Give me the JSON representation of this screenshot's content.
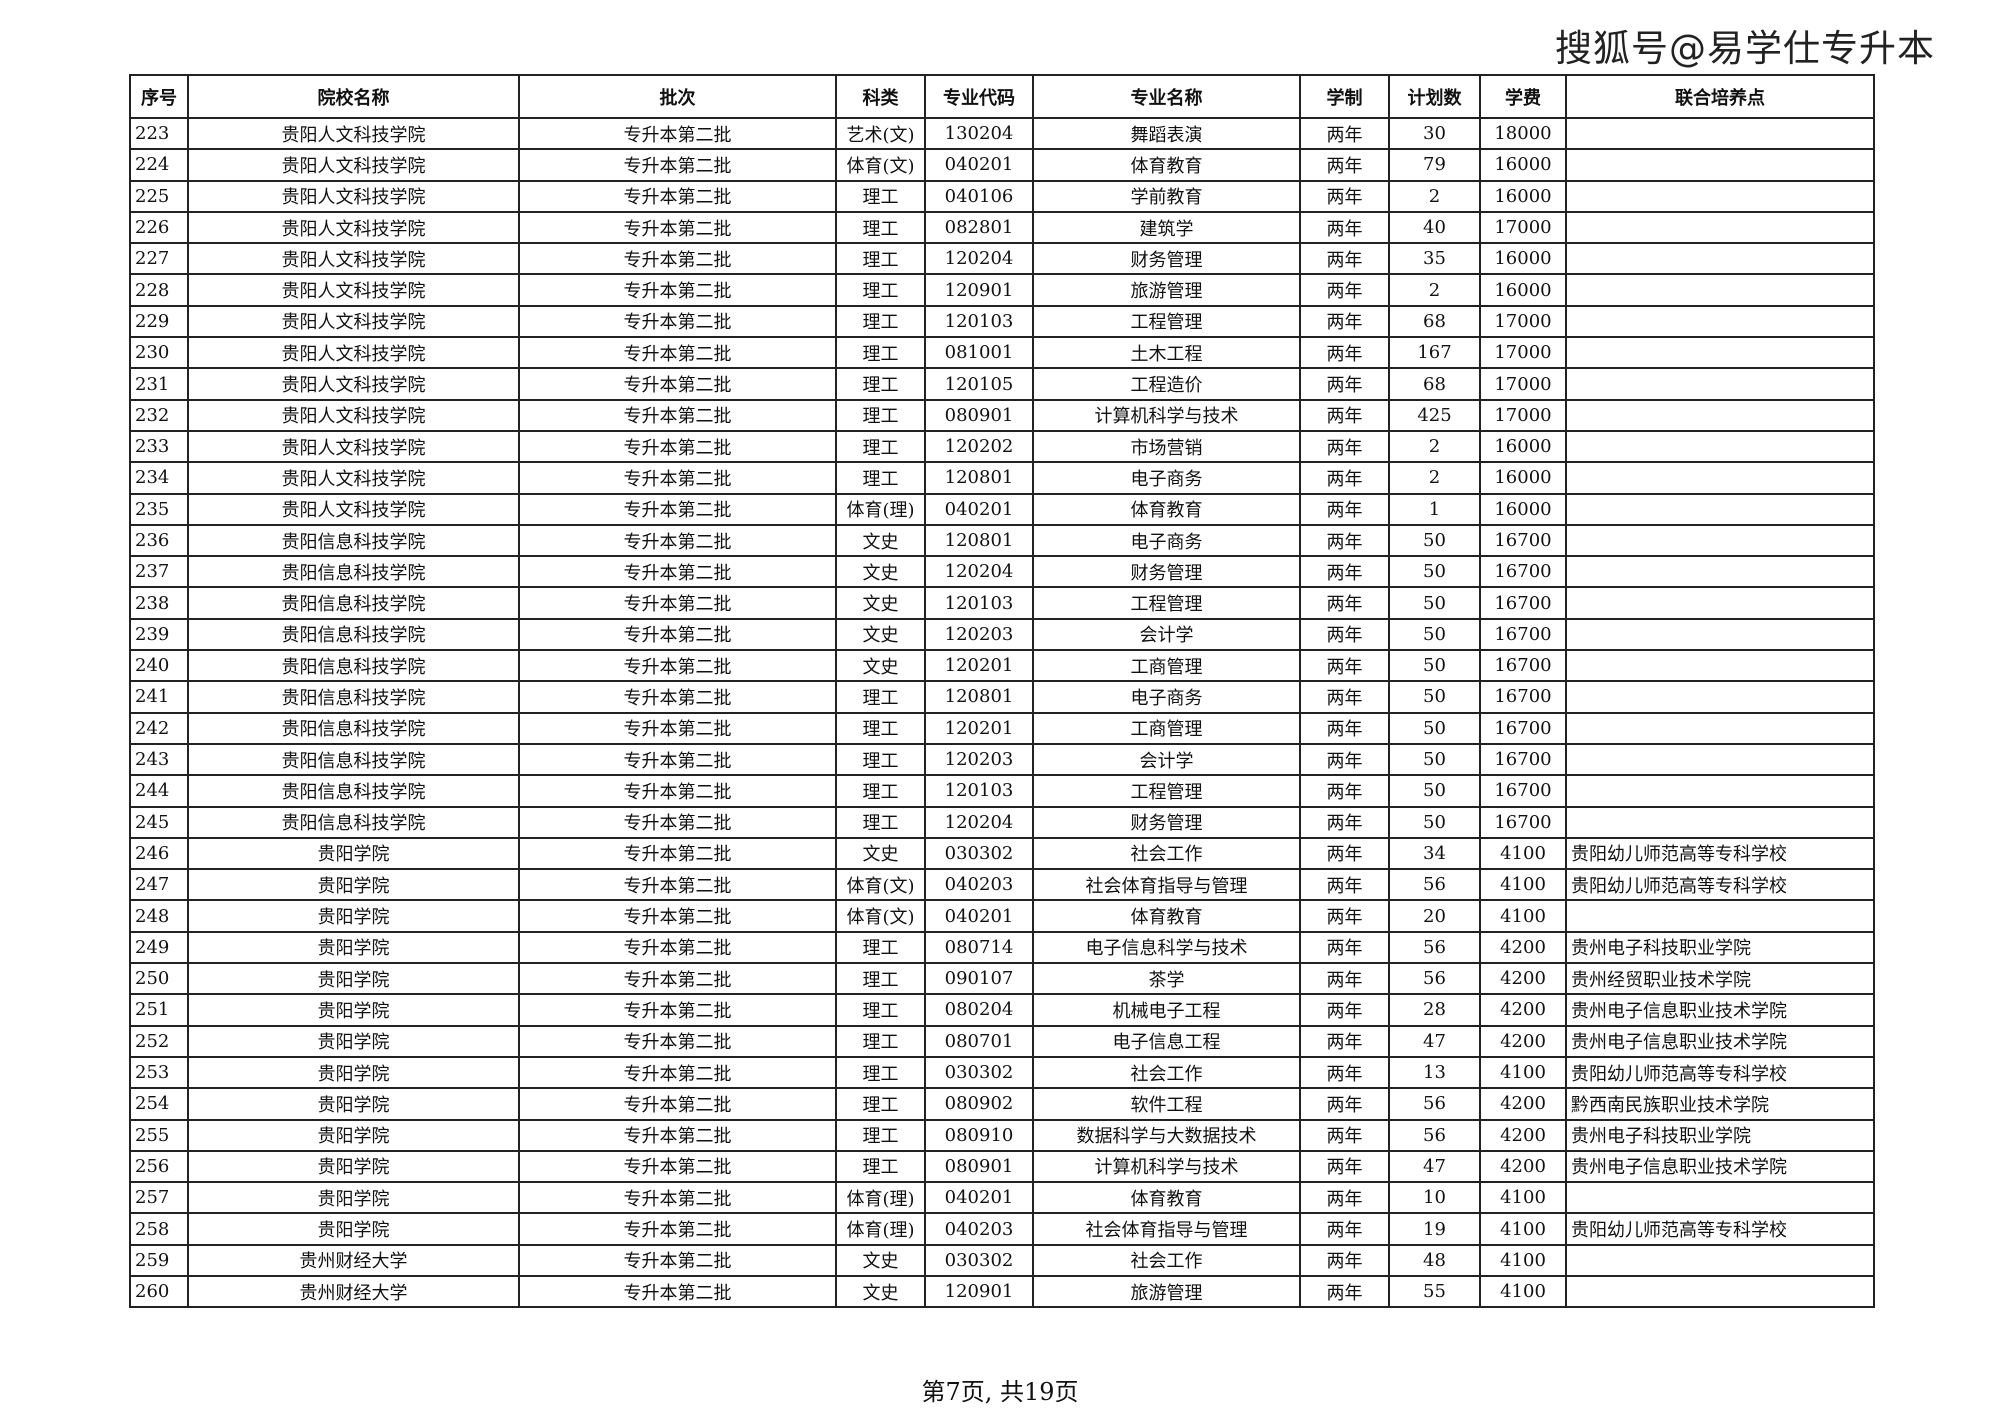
{
  "brand": "搜狐号@易学仕专升本",
  "table": {
    "headers": [
      "序号",
      "院校名称",
      "批次",
      "科类",
      "专业代码",
      "专业名称",
      "学制",
      "计划数",
      "学费",
      "联合培养点"
    ],
    "rows": [
      [
        "223",
        "贵阳人文科技学院",
        "专升本第二批",
        "艺术(文)",
        "130204",
        "舞蹈表演",
        "两年",
        "30",
        "18000",
        ""
      ],
      [
        "224",
        "贵阳人文科技学院",
        "专升本第二批",
        "体育(文)",
        "040201",
        "体育教育",
        "两年",
        "79",
        "16000",
        ""
      ],
      [
        "225",
        "贵阳人文科技学院",
        "专升本第二批",
        "理工",
        "040106",
        "学前教育",
        "两年",
        "2",
        "16000",
        ""
      ],
      [
        "226",
        "贵阳人文科技学院",
        "专升本第二批",
        "理工",
        "082801",
        "建筑学",
        "两年",
        "40",
        "17000",
        ""
      ],
      [
        "227",
        "贵阳人文科技学院",
        "专升本第二批",
        "理工",
        "120204",
        "财务管理",
        "两年",
        "35",
        "16000",
        ""
      ],
      [
        "228",
        "贵阳人文科技学院",
        "专升本第二批",
        "理工",
        "120901",
        "旅游管理",
        "两年",
        "2",
        "16000",
        ""
      ],
      [
        "229",
        "贵阳人文科技学院",
        "专升本第二批",
        "理工",
        "120103",
        "工程管理",
        "两年",
        "68",
        "17000",
        ""
      ],
      [
        "230",
        "贵阳人文科技学院",
        "专升本第二批",
        "理工",
        "081001",
        "土木工程",
        "两年",
        "167",
        "17000",
        ""
      ],
      [
        "231",
        "贵阳人文科技学院",
        "专升本第二批",
        "理工",
        "120105",
        "工程造价",
        "两年",
        "68",
        "17000",
        ""
      ],
      [
        "232",
        "贵阳人文科技学院",
        "专升本第二批",
        "理工",
        "080901",
        "计算机科学与技术",
        "两年",
        "425",
        "17000",
        ""
      ],
      [
        "233",
        "贵阳人文科技学院",
        "专升本第二批",
        "理工",
        "120202",
        "市场营销",
        "两年",
        "2",
        "16000",
        ""
      ],
      [
        "234",
        "贵阳人文科技学院",
        "专升本第二批",
        "理工",
        "120801",
        "电子商务",
        "两年",
        "2",
        "16000",
        ""
      ],
      [
        "235",
        "贵阳人文科技学院",
        "专升本第二批",
        "体育(理)",
        "040201",
        "体育教育",
        "两年",
        "1",
        "16000",
        ""
      ],
      [
        "236",
        "贵阳信息科技学院",
        "专升本第二批",
        "文史",
        "120801",
        "电子商务",
        "两年",
        "50",
        "16700",
        ""
      ],
      [
        "237",
        "贵阳信息科技学院",
        "专升本第二批",
        "文史",
        "120204",
        "财务管理",
        "两年",
        "50",
        "16700",
        ""
      ],
      [
        "238",
        "贵阳信息科技学院",
        "专升本第二批",
        "文史",
        "120103",
        "工程管理",
        "两年",
        "50",
        "16700",
        ""
      ],
      [
        "239",
        "贵阳信息科技学院",
        "专升本第二批",
        "文史",
        "120203",
        "会计学",
        "两年",
        "50",
        "16700",
        ""
      ],
      [
        "240",
        "贵阳信息科技学院",
        "专升本第二批",
        "文史",
        "120201",
        "工商管理",
        "两年",
        "50",
        "16700",
        ""
      ],
      [
        "241",
        "贵阳信息科技学院",
        "专升本第二批",
        "理工",
        "120801",
        "电子商务",
        "两年",
        "50",
        "16700",
        ""
      ],
      [
        "242",
        "贵阳信息科技学院",
        "专升本第二批",
        "理工",
        "120201",
        "工商管理",
        "两年",
        "50",
        "16700",
        ""
      ],
      [
        "243",
        "贵阳信息科技学院",
        "专升本第二批",
        "理工",
        "120203",
        "会计学",
        "两年",
        "50",
        "16700",
        ""
      ],
      [
        "244",
        "贵阳信息科技学院",
        "专升本第二批",
        "理工",
        "120103",
        "工程管理",
        "两年",
        "50",
        "16700",
        ""
      ],
      [
        "245",
        "贵阳信息科技学院",
        "专升本第二批",
        "理工",
        "120204",
        "财务管理",
        "两年",
        "50",
        "16700",
        ""
      ],
      [
        "246",
        "贵阳学院",
        "专升本第二批",
        "文史",
        "030302",
        "社会工作",
        "两年",
        "34",
        "4100",
        "贵阳幼儿师范高等专科学校"
      ],
      [
        "247",
        "贵阳学院",
        "专升本第二批",
        "体育(文)",
        "040203",
        "社会体育指导与管理",
        "两年",
        "56",
        "4100",
        "贵阳幼儿师范高等专科学校"
      ],
      [
        "248",
        "贵阳学院",
        "专升本第二批",
        "体育(文)",
        "040201",
        "体育教育",
        "两年",
        "20",
        "4100",
        ""
      ],
      [
        "249",
        "贵阳学院",
        "专升本第二批",
        "理工",
        "080714",
        "电子信息科学与技术",
        "两年",
        "56",
        "4200",
        "贵州电子科技职业学院"
      ],
      [
        "250",
        "贵阳学院",
        "专升本第二批",
        "理工",
        "090107",
        "茶学",
        "两年",
        "56",
        "4200",
        "贵州经贸职业技术学院"
      ],
      [
        "251",
        "贵阳学院",
        "专升本第二批",
        "理工",
        "080204",
        "机械电子工程",
        "两年",
        "28",
        "4200",
        "贵州电子信息职业技术学院"
      ],
      [
        "252",
        "贵阳学院",
        "专升本第二批",
        "理工",
        "080701",
        "电子信息工程",
        "两年",
        "47",
        "4200",
        "贵州电子信息职业技术学院"
      ],
      [
        "253",
        "贵阳学院",
        "专升本第二批",
        "理工",
        "030302",
        "社会工作",
        "两年",
        "13",
        "4100",
        "贵阳幼儿师范高等专科学校"
      ],
      [
        "254",
        "贵阳学院",
        "专升本第二批",
        "理工",
        "080902",
        "软件工程",
        "两年",
        "56",
        "4200",
        "黔西南民族职业技术学院"
      ],
      [
        "255",
        "贵阳学院",
        "专升本第二批",
        "理工",
        "080910",
        "数据科学与大数据技术",
        "两年",
        "56",
        "4200",
        "贵州电子科技职业学院"
      ],
      [
        "256",
        "贵阳学院",
        "专升本第二批",
        "理工",
        "080901",
        "计算机科学与技术",
        "两年",
        "47",
        "4200",
        "贵州电子信息职业技术学院"
      ],
      [
        "257",
        "贵阳学院",
        "专升本第二批",
        "体育(理)",
        "040201",
        "体育教育",
        "两年",
        "10",
        "4100",
        ""
      ],
      [
        "258",
        "贵阳学院",
        "专升本第二批",
        "体育(理)",
        "040203",
        "社会体育指导与管理",
        "两年",
        "19",
        "4100",
        "贵阳幼儿师范高等专科学校"
      ],
      [
        "259",
        "贵州财经大学",
        "专升本第二批",
        "文史",
        "030302",
        "社会工作",
        "两年",
        "48",
        "4100",
        ""
      ],
      [
        "260",
        "贵州财经大学",
        "专升本第二批",
        "文史",
        "120901",
        "旅游管理",
        "两年",
        "55",
        "4100",
        ""
      ]
    ]
  },
  "footer": "第7页, 共19页"
}
